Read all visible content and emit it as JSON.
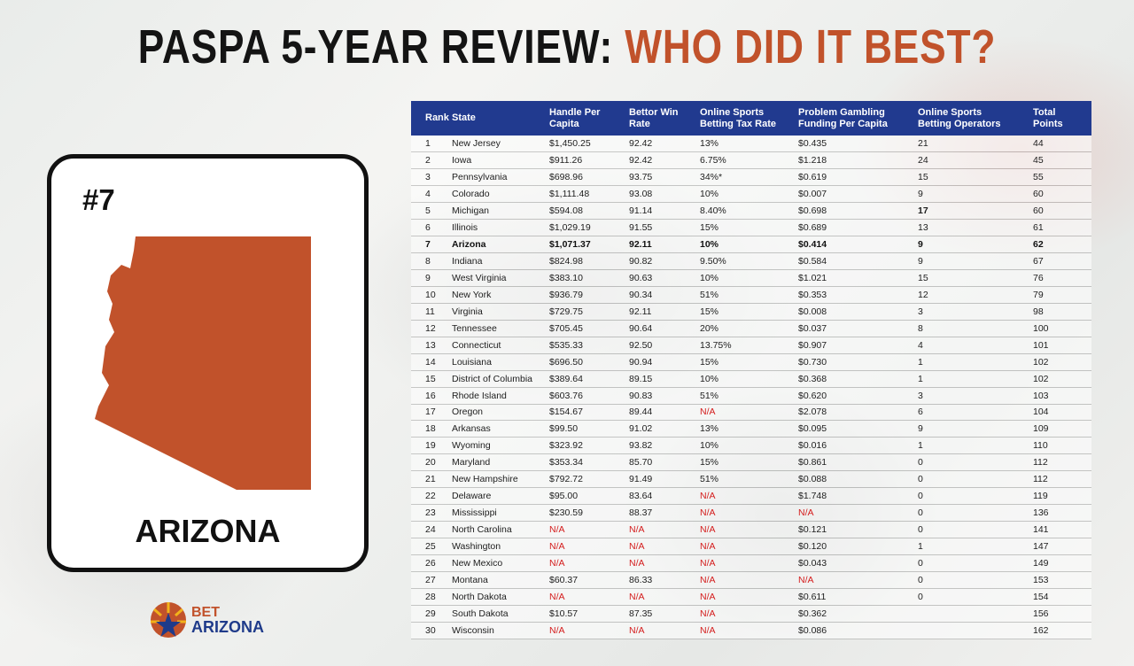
{
  "title": {
    "part1": "PASPA 5-YEAR REVIEW: ",
    "part2": "WHO DID IT BEST?"
  },
  "card": {
    "rank": "#7",
    "state": "ARIZONA",
    "map_icon": "arizona-state-map-icon",
    "map_color": "#c1522b"
  },
  "logo": {
    "line1": "BET",
    "line2": "ARIZONA"
  },
  "colors": {
    "header_bg": "#213a8f",
    "accent": "#c1522b",
    "na": "#d41c1c"
  },
  "table": {
    "headers": {
      "rank": "Rank",
      "state": "State",
      "handle_1": "Handle Per",
      "handle_2": "Capita",
      "win_1": "Bettor Win",
      "win_2": "Rate",
      "tax_1": "Online Sports",
      "tax_2": "Betting Tax Rate",
      "pg_1": "Problem Gambling",
      "pg_2": "Funding Per Capita",
      "ops_1": "Online Sports",
      "ops_2": "Betting Operators",
      "pts_1": "Total",
      "pts_2": "Points"
    },
    "highlight_rank": "7",
    "rows": [
      [
        "1",
        "New Jersey",
        "$1,450.25",
        "92.42",
        "13%",
        "$0.435",
        "21",
        "44"
      ],
      [
        "2",
        "Iowa",
        "$911.26",
        "92.42",
        "6.75%",
        "$1.218",
        "24",
        "45"
      ],
      [
        "3",
        "Pennsylvania",
        "$698.96",
        "93.75",
        "34%*",
        "$0.619",
        "15",
        "55"
      ],
      [
        "4",
        "Colorado",
        "$1,111.48",
        "93.08",
        "10%",
        "$0.007",
        "9",
        "60"
      ],
      [
        "5",
        "Michigan",
        "$594.08",
        "91.14",
        "8.40%",
        "$0.698",
        "17",
        "60"
      ],
      [
        "6",
        "Illinois",
        "$1,029.19",
        "91.55",
        "15%",
        "$0.689",
        "13",
        "61"
      ],
      [
        "7",
        "Arizona",
        "$1,071.37",
        "92.11",
        "10%",
        "$0.414",
        "9",
        "62"
      ],
      [
        "8",
        "Indiana",
        "$824.98",
        "90.82",
        "9.50%",
        "$0.584",
        "9",
        "67"
      ],
      [
        "9",
        "West Virginia",
        "$383.10",
        "90.63",
        "10%",
        "$1.021",
        "15",
        "76"
      ],
      [
        "10",
        "New York",
        "$936.79",
        "90.34",
        "51%",
        "$0.353",
        "12",
        "79"
      ],
      [
        "11",
        "Virginia",
        "$729.75",
        "92.11",
        "15%",
        "$0.008",
        "3",
        "98"
      ],
      [
        "12",
        "Tennessee",
        "$705.45",
        "90.64",
        "20%",
        "$0.037",
        "8",
        "100"
      ],
      [
        "13",
        "Connecticut",
        "$535.33",
        "92.50",
        "13.75%",
        "$0.907",
        "4",
        "101"
      ],
      [
        "14",
        "Louisiana",
        "$696.50",
        "90.94",
        "15%",
        "$0.730",
        "1",
        "102"
      ],
      [
        "15",
        "District of Columbia",
        "$389.64",
        "89.15",
        "10%",
        "$0.368",
        "1",
        "102"
      ],
      [
        "16",
        "Rhode Island",
        "$603.76",
        "90.83",
        "51%",
        "$0.620",
        "3",
        "103"
      ],
      [
        "17",
        "Oregon",
        "$154.67",
        "89.44",
        "N/A",
        "$2.078",
        "6",
        "104"
      ],
      [
        "18",
        "Arkansas",
        "$99.50",
        "91.02",
        "13%",
        "$0.095",
        "9",
        "109"
      ],
      [
        "19",
        "Wyoming",
        "$323.92",
        "93.82",
        "10%",
        "$0.016",
        "1",
        "110"
      ],
      [
        "20",
        "Maryland",
        "$353.34",
        "85.70",
        "15%",
        "$0.861",
        "0",
        "112"
      ],
      [
        "21",
        "New Hampshire",
        "$792.72",
        "91.49",
        "51%",
        "$0.088",
        "0",
        "112"
      ],
      [
        "22",
        "Delaware",
        "$95.00",
        "83.64",
        "N/A",
        "$1.748",
        "0",
        "119"
      ],
      [
        "23",
        "Mississippi",
        "$230.59",
        "88.37",
        "N/A",
        "N/A",
        "0",
        "136"
      ],
      [
        "24",
        "North Carolina",
        "N/A",
        "N/A",
        "N/A",
        "$0.121",
        "0",
        "141"
      ],
      [
        "25",
        "Washington",
        "N/A",
        "N/A",
        "N/A",
        "$0.120",
        "1",
        "147"
      ],
      [
        "26",
        "New Mexico",
        "N/A",
        "N/A",
        "N/A",
        "$0.043",
        "0",
        "149"
      ],
      [
        "27",
        "Montana",
        "$60.37",
        "86.33",
        "N/A",
        "N/A",
        "0",
        "153"
      ],
      [
        "28",
        "North Dakota",
        "N/A",
        "N/A",
        "N/A",
        "$0.611",
        "0",
        "154"
      ],
      [
        "29",
        "South Dakota",
        "$10.57",
        "87.35",
        "N/A",
        "$0.362",
        "",
        "156"
      ],
      [
        "30",
        "Wisconsin",
        "N/A",
        "N/A",
        "N/A",
        "$0.086",
        "",
        "162"
      ]
    ]
  }
}
